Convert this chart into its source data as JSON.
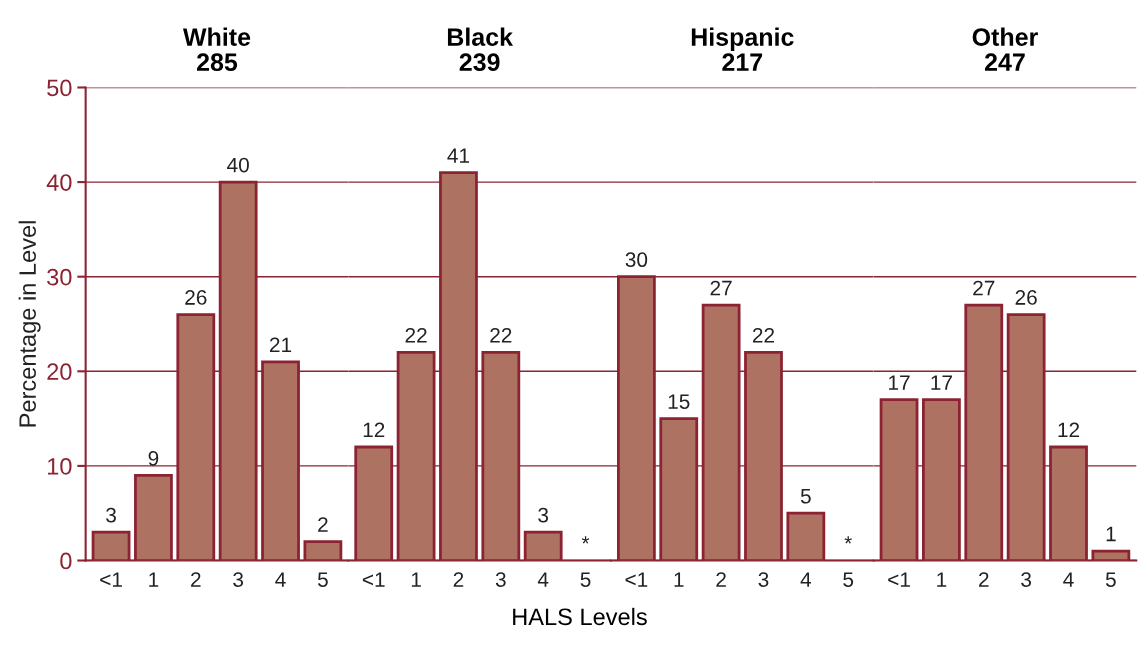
{
  "chart_data": [
    {
      "type": "bar",
      "title": "White\n285",
      "ylabel": "Percentage in Level",
      "categories": [
        "<1",
        "1",
        "2",
        "3",
        "4",
        "5"
      ],
      "values": [
        3,
        9,
        26,
        40,
        21,
        2
      ],
      "color": "#ad7261",
      "ylim": [
        0,
        50
      ],
      "yticks": [
        0,
        10,
        20,
        30,
        40,
        50
      ],
      "grid": "y",
      "data_labels": true
    },
    {
      "type": "bar",
      "title": "Black\n239",
      "xlabel": "HALS Levels",
      "categories": [
        "<1",
        "1",
        "2",
        "3",
        "4",
        "5"
      ],
      "values": [
        12,
        22,
        41,
        22,
        3,
        null
      ],
      "value_labels": [
        "12",
        "22",
        "41",
        "22",
        "3",
        "*"
      ],
      "color": "#ad7261",
      "ylim": [
        0,
        50
      ],
      "yticks": [
        0,
        10,
        20,
        30,
        40,
        50
      ],
      "grid": "y",
      "tick_labels": "x"
    },
    {
      "type": "bar",
      "title": "Hispanic\n217",
      "categories": [
        "<1",
        "1",
        "2",
        "3",
        "4",
        "5"
      ],
      "values": [
        30,
        15,
        27,
        22,
        5,
        null
      ],
      "value_labels": [
        "30",
        "15",
        "27",
        "22",
        "5",
        "*"
      ],
      "color": "#ad7261",
      "ylim": [
        0,
        50
      ],
      "yticks": [
        0,
        10,
        20,
        30,
        40,
        50
      ],
      "grid": "y",
      "tick_labels": "x"
    },
    {
      "type": "bar",
      "title": "Other\n247",
      "categories": [
        "<1",
        "1",
        "2",
        "3",
        "4",
        "5"
      ],
      "values": [
        17,
        17,
        27,
        26,
        12,
        1
      ],
      "color": "#ad7261",
      "ylim": [
        0,
        50
      ],
      "yticks": [
        0,
        10,
        20,
        30,
        40,
        50
      ],
      "grid": "y",
      "data_labels": true,
      "tick_labels": "x"
    }
  ]
}
